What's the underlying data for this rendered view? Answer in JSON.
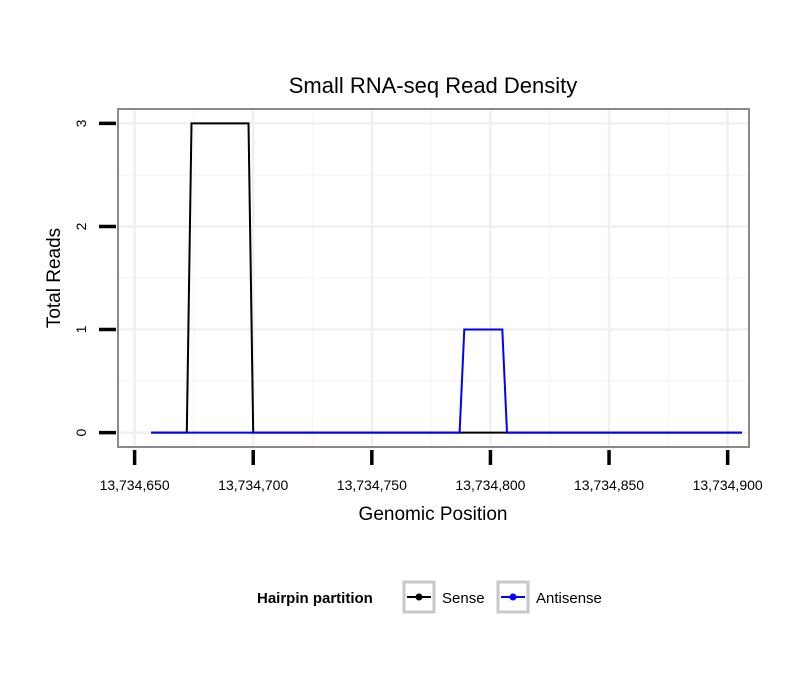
{
  "chart_data": {
    "type": "line",
    "title": "Small RNA-seq Read Density",
    "xlabel": "Genomic Position",
    "ylabel": "Total Reads",
    "xlim": [
      13734643,
      13734909
    ],
    "ylim": [
      -0.14,
      3.14
    ],
    "x_ticks": [
      13734650,
      13734700,
      13734750,
      13734800,
      13734850,
      13734900
    ],
    "x_tick_labels": [
      "13,734,650",
      "13,734,700",
      "13,734,750",
      "13,734,800",
      "13,734,850",
      "13,734,900"
    ],
    "y_ticks": [
      0,
      1,
      2,
      3
    ],
    "y_tick_labels": [
      "0",
      "1",
      "2",
      "3"
    ],
    "grid": true,
    "legend": {
      "title": "Hairpin partition",
      "position": "bottom"
    },
    "series": [
      {
        "name": "Sense",
        "color": "#000000",
        "x": [
          13734657,
          13734672,
          13734674,
          13734698,
          13734700,
          13734906
        ],
        "y": [
          0,
          0,
          3,
          3,
          0,
          0
        ]
      },
      {
        "name": "Antisense",
        "color": "#0000ff",
        "x": [
          13734657,
          13734787,
          13734789,
          13734805,
          13734807,
          13734906
        ],
        "y": [
          0,
          0,
          1,
          1,
          0,
          0
        ]
      }
    ]
  }
}
